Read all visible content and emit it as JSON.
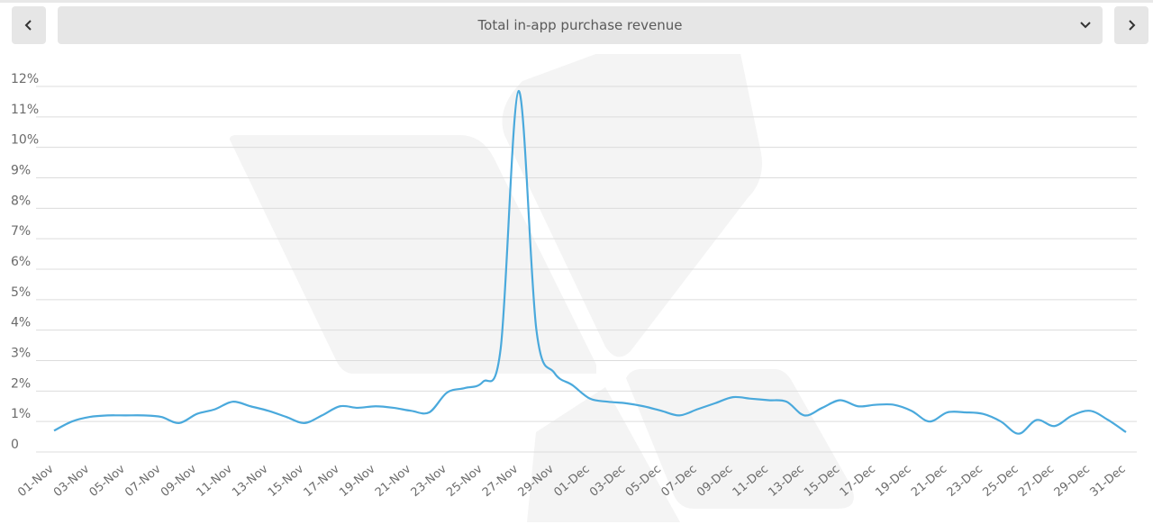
{
  "header": {
    "prev_icon": "chevron-left-icon",
    "next_icon": "chevron-right-icon",
    "dropdown_icon": "chevron-down-icon",
    "metric_selected": "Total in-app purchase revenue"
  },
  "colors": {
    "line": "#4aa9dc",
    "grid": "#dcdcdc",
    "toolbar_bg": "#e6e6e6",
    "watermark": "#f4f4f4"
  },
  "chart_data": {
    "type": "line",
    "grid": true,
    "y_ticks": [
      "0",
      "1%",
      "2%",
      "3%",
      "4%",
      "5%",
      "6%",
      "7%",
      "8%",
      "9%",
      "10%",
      "11%",
      "12%"
    ],
    "ylim": [
      0,
      12
    ],
    "x_tick_labels": [
      "01-Nov",
      "03-Nov",
      "05-Nov",
      "07-Nov",
      "09-Nov",
      "11-Nov",
      "13-Nov",
      "15-Nov",
      "17-Nov",
      "19-Nov",
      "21-Nov",
      "23-Nov",
      "25-Nov",
      "27-Nov",
      "29-Nov",
      "01-Dec",
      "03-Dec",
      "05-Dec",
      "07-Dec",
      "09-Dec",
      "11-Dec",
      "13-Dec",
      "15-Dec",
      "17-Dec",
      "19-Dec",
      "21-Dec",
      "23-Dec",
      "25-Dec",
      "27-Dec",
      "29-Dec",
      "31-Dec"
    ],
    "x": [
      "01-Nov",
      "02-Nov",
      "03-Nov",
      "04-Nov",
      "05-Nov",
      "06-Nov",
      "07-Nov",
      "08-Nov",
      "09-Nov",
      "10-Nov",
      "11-Nov",
      "12-Nov",
      "13-Nov",
      "14-Nov",
      "15-Nov",
      "16-Nov",
      "17-Nov",
      "18-Nov",
      "19-Nov",
      "20-Nov",
      "21-Nov",
      "22-Nov",
      "23-Nov",
      "24-Nov",
      "25-Nov",
      "26-Nov",
      "27-Nov",
      "28-Nov",
      "29-Nov",
      "30-Nov",
      "01-Dec",
      "02-Dec",
      "03-Dec",
      "04-Dec",
      "05-Dec",
      "06-Dec",
      "07-Dec",
      "08-Dec",
      "09-Dec",
      "10-Dec",
      "11-Dec",
      "12-Dec",
      "13-Dec",
      "14-Dec",
      "15-Dec",
      "16-Dec",
      "17-Dec",
      "18-Dec",
      "19-Dec",
      "20-Dec",
      "21-Dec",
      "22-Dec",
      "23-Dec",
      "24-Dec",
      "25-Dec",
      "26-Dec",
      "27-Dec",
      "28-Dec",
      "29-Dec",
      "30-Dec",
      "31-Dec"
    ],
    "values": [
      0.7,
      1.0,
      1.15,
      1.2,
      1.2,
      1.2,
      1.15,
      0.95,
      1.25,
      1.4,
      1.65,
      1.5,
      1.35,
      1.15,
      0.95,
      1.2,
      1.5,
      1.45,
      1.5,
      1.45,
      1.35,
      1.3,
      1.95,
      2.1,
      2.3,
      3.4,
      11.85,
      4.0,
      2.6,
      2.2,
      1.75,
      1.65,
      1.6,
      1.5,
      1.35,
      1.2,
      1.4,
      1.6,
      1.8,
      1.75,
      1.7,
      1.65,
      1.2,
      1.45,
      1.7,
      1.5,
      1.55,
      1.55,
      1.35,
      1.0,
      1.3,
      1.3,
      1.25,
      1.0,
      0.6,
      1.05,
      0.85,
      1.2,
      1.35,
      1.05,
      0.65
    ]
  }
}
